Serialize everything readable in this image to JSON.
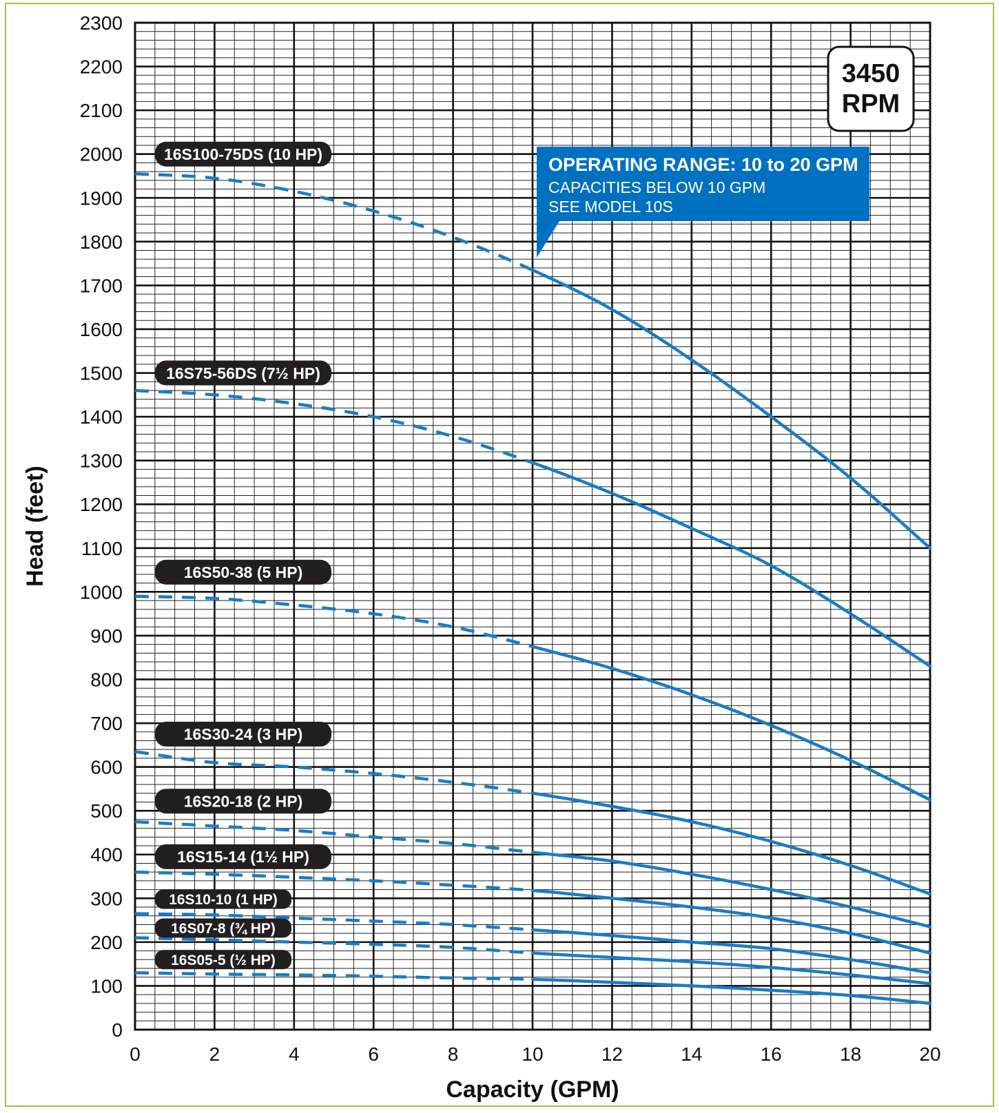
{
  "chart_data": {
    "type": "line",
    "xlabel": "Capacity (GPM)",
    "ylabel": "Head (feet)",
    "xlim": [
      0,
      20
    ],
    "ylim": [
      0,
      2300
    ],
    "x_ticks": [
      0,
      2,
      4,
      6,
      8,
      10,
      12,
      14,
      16,
      18,
      20
    ],
    "y_ticks": [
      0,
      100,
      200,
      300,
      400,
      500,
      600,
      700,
      800,
      900,
      1000,
      1100,
      1200,
      1300,
      1400,
      1500,
      1600,
      1700,
      1800,
      1900,
      2000,
      2100,
      2200,
      2300
    ],
    "grid": true,
    "speed_badge": [
      "3450",
      "RPM"
    ],
    "operating_range": {
      "x_start": 10,
      "title": "OPERATING RANGE: 10 to 20 GPM",
      "lines": [
        "CAPACITIES BELOW 10 GPM",
        "SEE MODEL 10S"
      ]
    },
    "line_color": "#1a7cc4",
    "label_color": "#231f20",
    "callout_color": "#0070c0",
    "series": [
      {
        "name": "16S100-75DS (10 HP)",
        "x": [
          0,
          2,
          4,
          6,
          8,
          10,
          12,
          14,
          16,
          18,
          20
        ],
        "y": [
          1955,
          1945,
          1915,
          1870,
          1810,
          1735,
          1645,
          1530,
          1400,
          1260,
          1100
        ],
        "label_value": 2000
      },
      {
        "name": "16S75-56DS (7½ HP)",
        "x": [
          0,
          2,
          4,
          6,
          8,
          10,
          12,
          14,
          16,
          18,
          20
        ],
        "y": [
          1460,
          1450,
          1430,
          1400,
          1355,
          1295,
          1225,
          1145,
          1060,
          950,
          830
        ],
        "label_value": 1500
      },
      {
        "name": "16S50-38 (5 HP)",
        "x": [
          0,
          2,
          4,
          6,
          8,
          10,
          12,
          14,
          16,
          18,
          20
        ],
        "y": [
          990,
          985,
          970,
          950,
          920,
          875,
          825,
          765,
          695,
          615,
          525
        ],
        "label_value": 1045
      },
      {
        "name": "16S30-24 (3 HP)",
        "x": [
          0,
          2,
          4,
          6,
          8,
          10,
          12,
          14,
          16,
          18,
          20
        ],
        "y": [
          635,
          610,
          600,
          585,
          565,
          540,
          510,
          475,
          430,
          375,
          310
        ],
        "label_value": 675
      },
      {
        "name": "16S20-18 (2 HP)",
        "x": [
          0,
          2,
          4,
          6,
          8,
          10,
          12,
          14,
          16,
          18,
          20
        ],
        "y": [
          475,
          465,
          455,
          440,
          425,
          405,
          385,
          355,
          320,
          280,
          235
        ],
        "label_value": 522
      },
      {
        "name": "16S15-14 (1½ HP)",
        "x": [
          0,
          2,
          4,
          6,
          8,
          10,
          12,
          14,
          16,
          18,
          20
        ],
        "y": [
          360,
          355,
          348,
          340,
          330,
          318,
          300,
          280,
          255,
          220,
          175
        ],
        "label_value": 395
      },
      {
        "name": "16S10-10 (1 HP)",
        "x": [
          0,
          2,
          4,
          6,
          8,
          10,
          12,
          14,
          16,
          18,
          20
        ],
        "y": [
          265,
          262,
          255,
          248,
          240,
          228,
          215,
          200,
          185,
          160,
          130
        ],
        "label_value": 298
      },
      {
        "name": "16S07-8 (¾ HP)",
        "x": [
          0,
          2,
          4,
          6,
          8,
          10,
          12,
          14,
          16,
          18,
          20
        ],
        "y": [
          210,
          205,
          200,
          195,
          188,
          175,
          165,
          155,
          142,
          125,
          105
        ],
        "label_value": 232
      },
      {
        "name": "16S05-5 (½ HP)",
        "x": [
          0,
          2,
          4,
          6,
          8,
          10,
          12,
          14,
          16,
          18,
          20
        ],
        "y": [
          130,
          127,
          125,
          122,
          118,
          115,
          108,
          100,
          90,
          78,
          60
        ],
        "label_value": 160
      }
    ]
  }
}
